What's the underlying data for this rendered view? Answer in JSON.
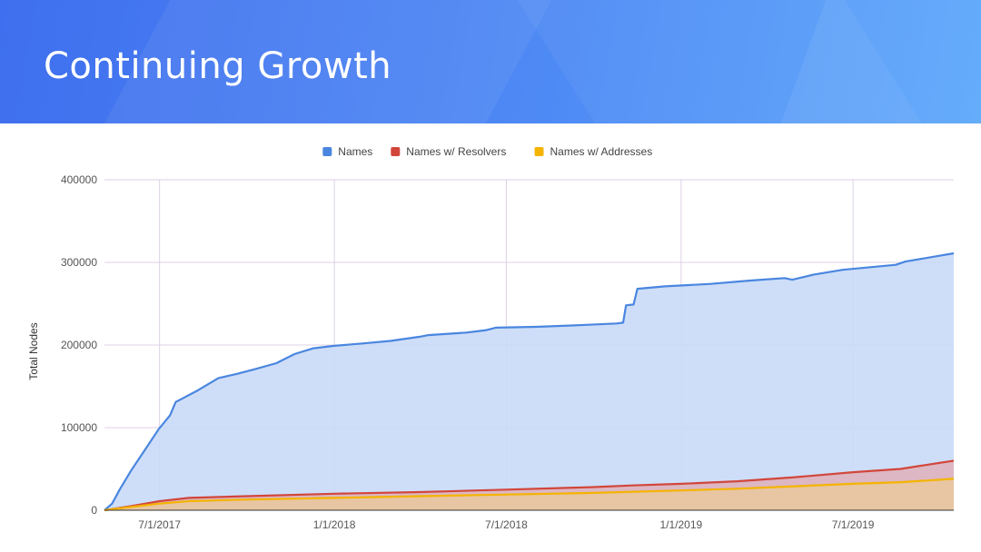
{
  "slide": {
    "title": "Continuing Growth"
  },
  "colors": {
    "names": "#4a86e0",
    "names_fill": "#c9daf7",
    "resolvers": "#d2463a",
    "resolvers_fill": "#dfb3bd",
    "addresses": "#f4b400",
    "addresses_fill": "#e9c6a0",
    "grid": "#dcd0e6"
  },
  "chart_data": {
    "type": "area",
    "title": "",
    "xlabel": "",
    "ylabel": "Total Nodes",
    "ylim": [
      0,
      400000
    ],
    "yticks": [
      0,
      100000,
      200000,
      300000,
      400000
    ],
    "xlim": [
      "2017-05-04",
      "2019-10-15"
    ],
    "xticks": [
      {
        "date": "2017-07-01",
        "label": "7/1/2017"
      },
      {
        "date": "2018-01-01",
        "label": "1/1/2018"
      },
      {
        "date": "2018-07-01",
        "label": "7/1/2018"
      },
      {
        "date": "2019-01-01",
        "label": "1/1/2019"
      },
      {
        "date": "2019-07-01",
        "label": "7/1/2019"
      }
    ],
    "grid": true,
    "legend_position": "top",
    "series": [
      {
        "name": "Names",
        "color_key": "names",
        "points": [
          [
            "2017-05-04",
            0
          ],
          [
            "2017-05-12",
            8000
          ],
          [
            "2017-05-20",
            25000
          ],
          [
            "2017-06-01",
            48000
          ],
          [
            "2017-06-15",
            72000
          ],
          [
            "2017-06-30",
            98000
          ],
          [
            "2017-07-12",
            115000
          ],
          [
            "2017-07-18",
            131000
          ],
          [
            "2017-08-10",
            145000
          ],
          [
            "2017-09-01",
            160000
          ],
          [
            "2017-09-20",
            165000
          ],
          [
            "2017-10-10",
            171000
          ],
          [
            "2017-11-01",
            178000
          ],
          [
            "2017-11-20",
            189000
          ],
          [
            "2017-12-10",
            196000
          ],
          [
            "2018-01-01",
            199000
          ],
          [
            "2018-02-01",
            202000
          ],
          [
            "2018-03-01",
            205000
          ],
          [
            "2018-04-01",
            210000
          ],
          [
            "2018-04-10",
            212000
          ],
          [
            "2018-05-20",
            215000
          ],
          [
            "2018-06-10",
            218000
          ],
          [
            "2018-06-20",
            221000
          ],
          [
            "2018-08-01",
            222000
          ],
          [
            "2018-09-15",
            224000
          ],
          [
            "2018-10-25",
            226000
          ],
          [
            "2018-11-01",
            227000
          ],
          [
            "2018-11-04",
            248000
          ],
          [
            "2018-11-12",
            249000
          ],
          [
            "2018-11-16",
            268000
          ],
          [
            "2018-12-15",
            271000
          ],
          [
            "2019-02-01",
            274000
          ],
          [
            "2019-03-15",
            278000
          ],
          [
            "2019-04-20",
            281000
          ],
          [
            "2019-04-28",
            279000
          ],
          [
            "2019-05-20",
            285000
          ],
          [
            "2019-06-20",
            291000
          ],
          [
            "2019-08-15",
            297000
          ],
          [
            "2019-08-25",
            301000
          ],
          [
            "2019-10-15",
            311000
          ]
        ]
      },
      {
        "name": "Names w/ Resolvers",
        "color_key": "resolvers",
        "points": [
          [
            "2017-05-04",
            0
          ],
          [
            "2017-06-01",
            5000
          ],
          [
            "2017-07-01",
            11000
          ],
          [
            "2017-08-01",
            15000
          ],
          [
            "2017-10-01",
            17000
          ],
          [
            "2018-01-01",
            20000
          ],
          [
            "2018-04-01",
            22000
          ],
          [
            "2018-07-01",
            25000
          ],
          [
            "2018-10-01",
            28000
          ],
          [
            "2018-11-10",
            30000
          ],
          [
            "2019-01-01",
            32000
          ],
          [
            "2019-03-01",
            35000
          ],
          [
            "2019-05-01",
            40000
          ],
          [
            "2019-07-01",
            46000
          ],
          [
            "2019-08-20",
            50000
          ],
          [
            "2019-10-15",
            60000
          ]
        ]
      },
      {
        "name": "Names w/ Addresses",
        "color_key": "addresses",
        "points": [
          [
            "2017-05-04",
            0
          ],
          [
            "2017-06-01",
            4000
          ],
          [
            "2017-07-01",
            8000
          ],
          [
            "2017-08-01",
            11000
          ],
          [
            "2017-10-01",
            13000
          ],
          [
            "2018-01-01",
            15000
          ],
          [
            "2018-04-01",
            17000
          ],
          [
            "2018-07-01",
            19000
          ],
          [
            "2018-10-01",
            21000
          ],
          [
            "2019-01-01",
            24000
          ],
          [
            "2019-03-01",
            26000
          ],
          [
            "2019-05-01",
            29000
          ],
          [
            "2019-07-01",
            32000
          ],
          [
            "2019-08-20",
            34000
          ],
          [
            "2019-10-15",
            38000
          ]
        ]
      }
    ]
  }
}
